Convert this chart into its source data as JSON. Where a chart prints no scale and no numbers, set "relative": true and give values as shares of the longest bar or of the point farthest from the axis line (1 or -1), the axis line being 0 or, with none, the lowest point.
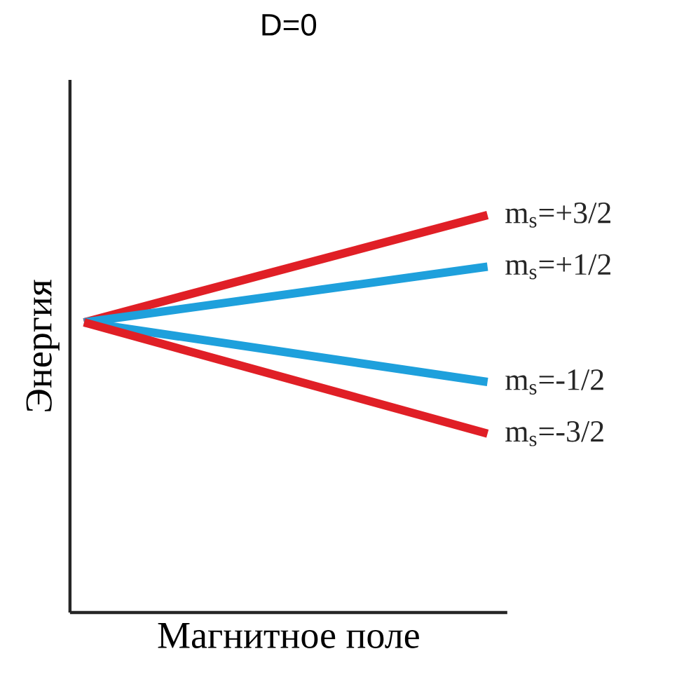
{
  "chart_data": {
    "type": "line",
    "title": "D=0",
    "xlabel": "Магнитное поле",
    "ylabel": "Энергия",
    "relative": true,
    "categories": [
      null,
      null
    ],
    "series": [
      {
        "name": "m$_{s}$=+3/2",
        "color": "#e01f26",
        "values": [
          0.73,
          1.0
        ]
      },
      {
        "name": "m$_{s}$=+1/2",
        "color": "#1ea0dc",
        "values": [
          0.73,
          0.87
        ]
      },
      {
        "name": "m$_{s}$=-1/2",
        "color": "#1ea0dc",
        "values": [
          0.73,
          0.58
        ]
      },
      {
        "name": "m$_{s}$=-3/2",
        "color": "#e01f26",
        "values": [
          0.73,
          0.45
        ]
      }
    ]
  }
}
